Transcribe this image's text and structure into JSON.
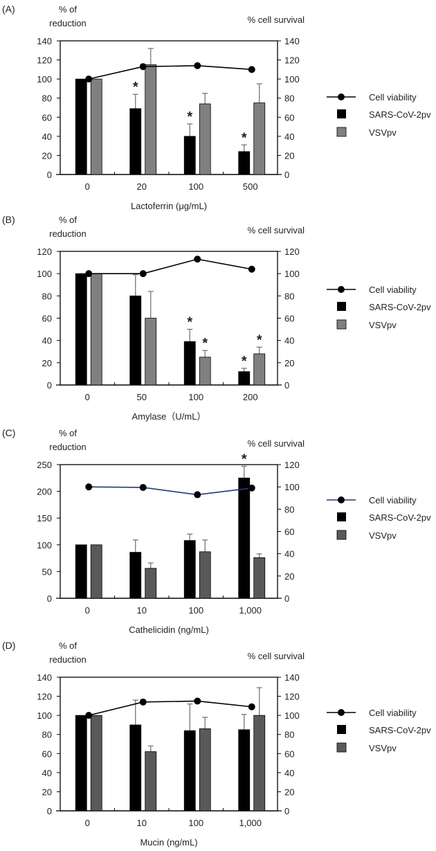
{
  "legend": {
    "viability": "Cell viability",
    "sars": "SARS-CoV-2pv",
    "vsv": "VSVpv"
  },
  "colors": {
    "sars": "#000000",
    "vsv_light": "#808080",
    "vsv_dark": "#595959",
    "line_black": "#000000",
    "line_navy": "#1f3a7a"
  },
  "chart_data": [
    {
      "type": "bar",
      "panel": "(A)",
      "title": "(A)",
      "ylabel_left": [
        "% of",
        "reduction"
      ],
      "ylabel_right": "% cell survival",
      "xlabel": "Lactoferrin (μg/mL)",
      "categories": [
        "0",
        "20",
        "100",
        "500"
      ],
      "ylim_left": [
        0,
        140
      ],
      "yticks_left": [
        0,
        20,
        40,
        60,
        80,
        100,
        120,
        140
      ],
      "ylim_right": [
        0,
        140
      ],
      "yticks_right": [
        0,
        20,
        40,
        60,
        80,
        100,
        120,
        140
      ],
      "series": [
        {
          "name": "SARS-CoV-2pv",
          "values": [
            100,
            69,
            40,
            24
          ],
          "err_upper": [
            100,
            84,
            53,
            31
          ],
          "significant": [
            false,
            true,
            true,
            true
          ]
        },
        {
          "name": "VSVpv",
          "values": [
            100,
            115,
            74,
            75
          ],
          "err_upper": [
            100,
            132,
            85,
            95
          ],
          "significant": [
            false,
            false,
            false,
            false
          ]
        },
        {
          "name": "Cell viability",
          "type": "line",
          "axis": "right",
          "values": [
            100,
            113,
            114,
            110
          ]
        }
      ],
      "significance_marker": "*"
    },
    {
      "type": "bar",
      "panel": "(B)",
      "title": "(B)",
      "ylabel_left": [
        "% of",
        "reduction"
      ],
      "ylabel_right": "% cell survival",
      "xlabel": "Amylase（U/mL）",
      "categories": [
        "0",
        "50",
        "100",
        "200"
      ],
      "ylim_left": [
        0,
        120
      ],
      "yticks_left": [
        0,
        20,
        40,
        60,
        80,
        100,
        120
      ],
      "ylim_right": [
        0,
        120
      ],
      "yticks_right": [
        0,
        20,
        40,
        60,
        80,
        100,
        120
      ],
      "series": [
        {
          "name": "SARS-CoV-2pv",
          "values": [
            100,
            80,
            39,
            12
          ],
          "err_upper": [
            100,
            99,
            50,
            15
          ],
          "significant": [
            false,
            false,
            true,
            true
          ]
        },
        {
          "name": "VSVpv",
          "values": [
            100,
            60,
            25,
            28
          ],
          "err_upper": [
            100,
            84,
            31,
            34
          ],
          "significant": [
            false,
            false,
            true,
            true
          ]
        },
        {
          "name": "Cell viability",
          "type": "line",
          "axis": "right",
          "values": [
            100,
            100,
            113,
            104
          ]
        }
      ],
      "significance_marker": "*"
    },
    {
      "type": "bar",
      "panel": "(C)",
      "title": "(C)",
      "ylabel_left": [
        "% of",
        "reduction"
      ],
      "ylabel_right": "% cell survival",
      "xlabel": "Cathelicidin (ng/mL)",
      "categories": [
        "0",
        "10",
        "100",
        "1,000"
      ],
      "ylim_left": [
        0,
        250
      ],
      "yticks_left": [
        0,
        50,
        100,
        150,
        200,
        250
      ],
      "ylim_right": [
        0,
        120
      ],
      "yticks_right": [
        0,
        20,
        40,
        60,
        80,
        100,
        120
      ],
      "series": [
        {
          "name": "SARS-CoV-2pv",
          "values": [
            100,
            86,
            108,
            225
          ],
          "err_upper": [
            100,
            109,
            120,
            247
          ],
          "significant": [
            false,
            false,
            false,
            true
          ]
        },
        {
          "name": "VSVpv",
          "values": [
            100,
            56,
            87,
            76
          ],
          "err_upper": [
            100,
            66,
            109,
            83
          ],
          "significant": [
            false,
            false,
            false,
            false
          ]
        },
        {
          "name": "Cell viability",
          "type": "line",
          "axis": "right",
          "values": [
            100,
            99.5,
            93,
            99
          ]
        }
      ],
      "significance_marker": "*"
    },
    {
      "type": "bar",
      "panel": "(D)",
      "title": "(D)",
      "ylabel_left": [
        "% of",
        "reduction"
      ],
      "ylabel_right": "% cell survival",
      "xlabel": "Mucin (ng/mL)",
      "categories": [
        "0",
        "10",
        "100",
        "1,000"
      ],
      "ylim_left": [
        0,
        140
      ],
      "yticks_left": [
        0,
        20,
        40,
        60,
        80,
        100,
        120,
        140
      ],
      "ylim_right": [
        0,
        140
      ],
      "yticks_right": [
        0,
        20,
        40,
        60,
        80,
        100,
        120,
        140
      ],
      "series": [
        {
          "name": "SARS-CoV-2pv",
          "values": [
            100,
            90,
            84,
            85
          ],
          "err_upper": [
            100,
            116,
            112,
            101
          ],
          "significant": [
            false,
            false,
            false,
            false
          ]
        },
        {
          "name": "VSVpv",
          "values": [
            100,
            62,
            86,
            100
          ],
          "err_upper": [
            100,
            68,
            98,
            129
          ],
          "significant": [
            false,
            false,
            false,
            false
          ]
        },
        {
          "name": "Cell viability",
          "type": "line",
          "axis": "right",
          "values": [
            100,
            114,
            115,
            109
          ]
        }
      ],
      "significance_marker": "*"
    }
  ]
}
